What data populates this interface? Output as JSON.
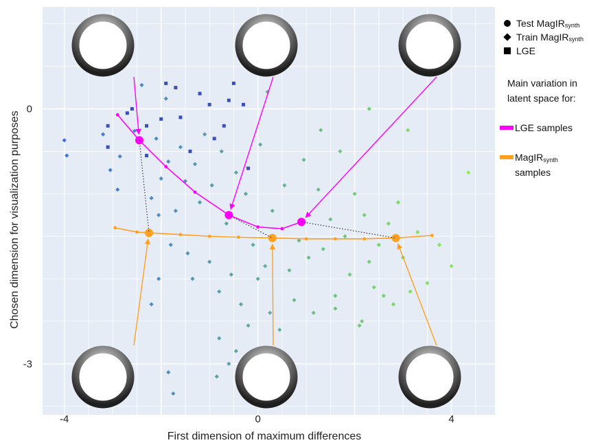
{
  "chart_data": {
    "type": "scatter",
    "xlabel": "First dimension of maximum differences",
    "ylabel": "Chosen dimension for visualization purposes",
    "xlim": [
      -4.45,
      4.9
    ],
    "ylim": [
      -3.6,
      1.2
    ],
    "x_ticks": [
      -4,
      0,
      4
    ],
    "y_ticks": [
      0,
      -3
    ],
    "x_tick_labels": [
      "-4",
      "0",
      "4"
    ],
    "y_tick_labels": [
      "0",
      "-3"
    ],
    "grid": true,
    "legend": {
      "position": "right",
      "items": [
        {
          "marker": "circle",
          "label": "Test  MagIR",
          "sub": "synth"
        },
        {
          "marker": "diamond",
          "label": "Train MagIR",
          "sub": "synth"
        },
        {
          "marker": "square",
          "label": "LGE",
          "sub": ""
        }
      ],
      "heading": [
        "Main variation in",
        "latent space for:"
      ],
      "lines": [
        {
          "label": [
            "LGE samples"
          ],
          "sub": "",
          "color": "#ff00ff"
        },
        {
          "label": [
            "MagIR",
            "samples"
          ],
          "sub": "synth",
          "color": "#ffa020"
        }
      ]
    },
    "series": [
      {
        "name": "LGE samples",
        "color": "#ff00ff",
        "x": [
          -2.9,
          -2.45,
          -1.9,
          -1.3,
          -0.6,
          0.0,
          0.5,
          0.9
        ],
        "y": [
          -0.07,
          -0.37,
          -0.68,
          -0.98,
          -1.25,
          -1.39,
          -1.41,
          -1.33
        ],
        "key_points": [
          {
            "x": -2.45,
            "y": -0.37
          },
          {
            "x": -0.6,
            "y": -1.25
          },
          {
            "x": 0.9,
            "y": -1.33
          }
        ]
      },
      {
        "name": "MagIR synth samples",
        "color": "#ffa020",
        "x": [
          -2.95,
          -2.5,
          -1.6,
          -1.0,
          -0.4,
          0.3,
          1.0,
          1.6,
          2.2,
          2.85,
          3.6
        ],
        "y": [
          -1.4,
          -1.45,
          -1.48,
          -1.5,
          -1.51,
          -1.52,
          -1.53,
          -1.53,
          -1.53,
          -1.52,
          -1.49
        ],
        "key_points": [
          {
            "x": -2.25,
            "y": -1.46
          },
          {
            "x": 0.3,
            "y": -1.52
          },
          {
            "x": 2.85,
            "y": -1.52
          }
        ]
      }
    ],
    "scatter_points": [
      [
        -4.0,
        -0.37,
        "d"
      ],
      [
        -3.95,
        -0.55,
        "d"
      ],
      [
        -3.2,
        -0.3,
        "d"
      ],
      [
        -3.1,
        -0.2,
        "s"
      ],
      [
        -3.05,
        -0.72,
        "d"
      ],
      [
        -2.9,
        -0.95,
        "d"
      ],
      [
        -2.85,
        -0.56,
        "d"
      ],
      [
        -2.6,
        -0.0,
        "s"
      ],
      [
        -2.55,
        -0.26,
        "d"
      ],
      [
        -2.4,
        0.28,
        "d"
      ],
      [
        -2.3,
        -0.55,
        "s"
      ],
      [
        -2.2,
        -1.05,
        "d"
      ],
      [
        -2.1,
        -0.35,
        "d"
      ],
      [
        -2.05,
        -1.25,
        "d"
      ],
      [
        -2.0,
        -0.82,
        "d"
      ],
      [
        -1.9,
        0.12,
        "d"
      ],
      [
        -1.85,
        -0.62,
        "d"
      ],
      [
        -1.8,
        -1.6,
        "d"
      ],
      [
        -1.7,
        -1.2,
        "d"
      ],
      [
        -1.6,
        -0.45,
        "d"
      ],
      [
        -1.5,
        -0.85,
        "d"
      ],
      [
        -1.45,
        -1.7,
        "d"
      ],
      [
        -1.35,
        -2.0,
        "d"
      ],
      [
        -1.3,
        -0.65,
        "d"
      ],
      [
        -1.2,
        -1.1,
        "d"
      ],
      [
        -1.1,
        -0.3,
        "d"
      ],
      [
        -1.0,
        -1.8,
        "d"
      ],
      [
        -0.95,
        -0.9,
        "d"
      ],
      [
        -0.8,
        -2.15,
        "d"
      ],
      [
        -0.75,
        -0.5,
        "d"
      ],
      [
        -0.65,
        -1.35,
        "d"
      ],
      [
        -0.55,
        -1.95,
        "d"
      ],
      [
        -0.45,
        -0.75,
        "d"
      ],
      [
        -0.35,
        -2.3,
        "d"
      ],
      [
        -0.25,
        -1.0,
        "d"
      ],
      [
        -0.2,
        -2.55,
        "d"
      ],
      [
        -0.1,
        -1.6,
        "d"
      ],
      [
        0.0,
        -2.0,
        "d"
      ],
      [
        0.05,
        -0.42,
        "d"
      ],
      [
        0.15,
        -1.85,
        "d"
      ],
      [
        0.25,
        -2.4,
        "d"
      ],
      [
        0.3,
        -1.2,
        "d"
      ],
      [
        0.45,
        -2.6,
        "d"
      ],
      [
        0.55,
        -0.9,
        "d"
      ],
      [
        0.65,
        -1.9,
        "d"
      ],
      [
        0.75,
        -2.25,
        "d"
      ],
      [
        0.85,
        -1.55,
        "d"
      ],
      [
        0.95,
        -0.6,
        "d"
      ],
      [
        1.05,
        -1.75,
        "d"
      ],
      [
        1.15,
        -2.4,
        "d"
      ],
      [
        1.25,
        -0.95,
        "d"
      ],
      [
        1.35,
        -1.65,
        "d"
      ],
      [
        1.5,
        -1.3,
        "d"
      ],
      [
        1.6,
        -2.2,
        "d"
      ],
      [
        1.7,
        -0.5,
        "d"
      ],
      [
        1.8,
        -1.5,
        "d"
      ],
      [
        1.9,
        -1.95,
        "d"
      ],
      [
        2.0,
        -1.0,
        "d"
      ],
      [
        2.1,
        -2.55,
        "d"
      ],
      [
        2.2,
        -1.25,
        "d"
      ],
      [
        2.3,
        -1.8,
        "d"
      ],
      [
        2.4,
        -2.1,
        "d"
      ],
      [
        2.5,
        -1.6,
        "d"
      ],
      [
        2.6,
        -2.2,
        "d"
      ],
      [
        2.7,
        -1.35,
        "d"
      ],
      [
        2.8,
        -2.3,
        "d"
      ],
      [
        2.9,
        -1.1,
        "d"
      ],
      [
        3.0,
        -1.75,
        "d"
      ],
      [
        3.15,
        -2.15,
        "d"
      ],
      [
        3.3,
        -1.45,
        "d"
      ],
      [
        3.5,
        -2.05,
        "d"
      ],
      [
        3.75,
        -1.6,
        "d"
      ],
      [
        4.0,
        -1.85,
        "d"
      ],
      [
        4.35,
        -0.75,
        "d"
      ],
      [
        3.1,
        -0.25,
        "d"
      ],
      [
        2.3,
        0.0,
        "d"
      ],
      [
        1.3,
        -0.25,
        "d"
      ],
      [
        0.2,
        0.2,
        "d"
      ],
      [
        -0.5,
        0.3,
        "s"
      ],
      [
        -1.2,
        0.18,
        "s"
      ],
      [
        -1.7,
        0.25,
        "s"
      ],
      [
        -2.0,
        -0.12,
        "s"
      ],
      [
        -0.6,
        0.1,
        "s"
      ],
      [
        -0.9,
        -0.35,
        "s"
      ],
      [
        -1.4,
        -0.5,
        "s"
      ],
      [
        -2.3,
        -0.2,
        "s"
      ],
      [
        -0.2,
        -0.7,
        "s"
      ],
      [
        -0.7,
        -0.2,
        "s"
      ],
      [
        -1.0,
        0.05,
        "s"
      ],
      [
        -1.6,
        -0.1,
        "s"
      ],
      [
        -0.3,
        0.05,
        "s"
      ],
      [
        -1.9,
        0.3,
        "s"
      ],
      [
        -1.85,
        -3.1,
        "d"
      ],
      [
        -1.75,
        -3.35,
        "d"
      ],
      [
        -0.85,
        -3.15,
        "d"
      ],
      [
        -0.6,
        -3.0,
        "d"
      ],
      [
        -0.8,
        -2.7,
        "d"
      ],
      [
        -0.45,
        -2.85,
        "d"
      ],
      [
        -2.2,
        -2.3,
        "d"
      ],
      [
        -2.05,
        -2.0,
        "d"
      ],
      [
        1.6,
        -2.35,
        "d"
      ],
      [
        2.15,
        -2.5,
        "d"
      ],
      [
        -3.1,
        -0.45,
        "s"
      ],
      [
        -2.7,
        -0.05,
        "s"
      ]
    ]
  }
}
